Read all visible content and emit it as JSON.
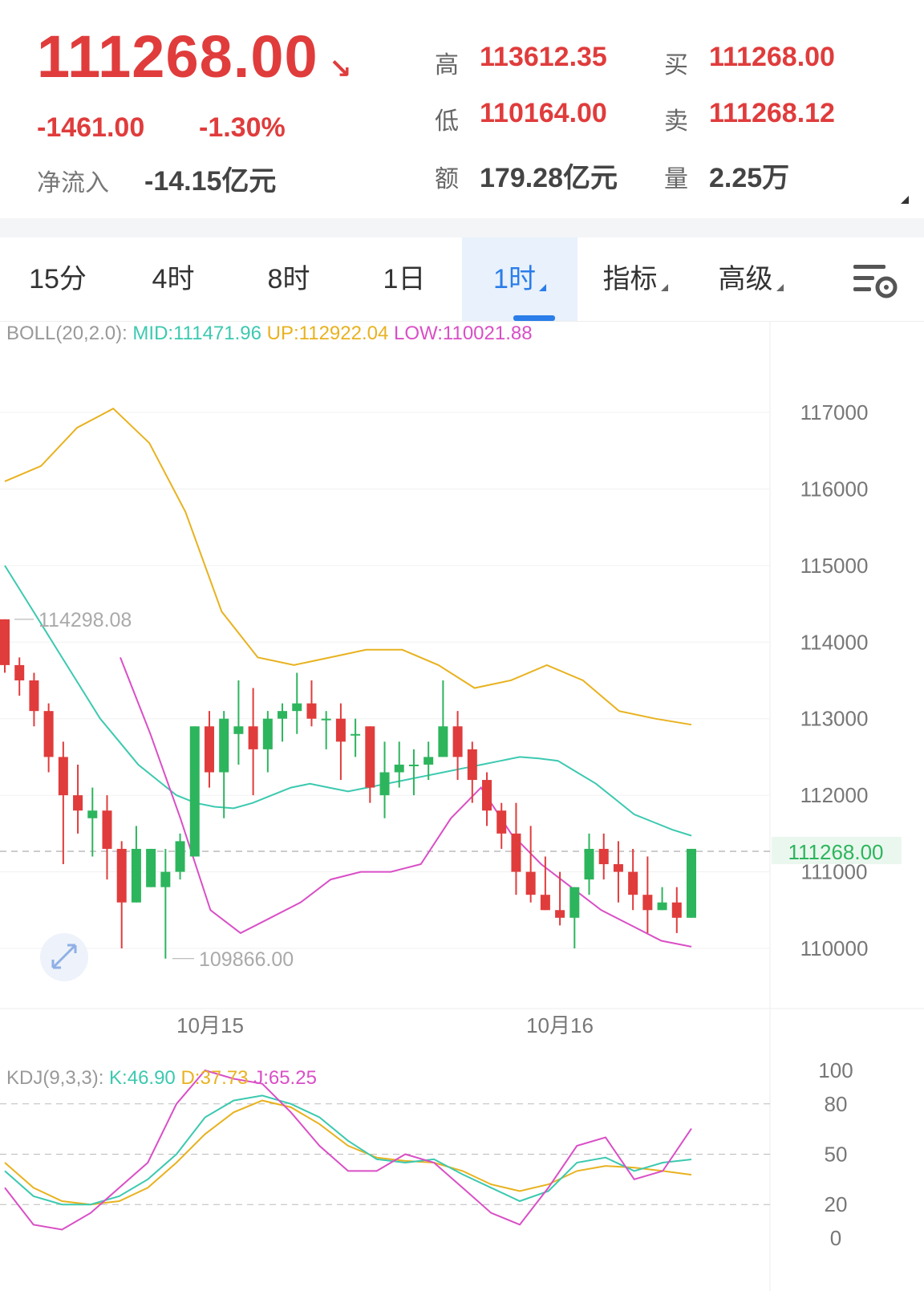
{
  "header": {
    "price": "111268.00",
    "change": "-1461.00",
    "change_pct": "-1.30%",
    "net_inflow_label": "净流入",
    "net_inflow_value": "-14.15亿元",
    "stats": [
      {
        "label": "高",
        "value": "113612.35"
      },
      {
        "label": "买",
        "value": "111268.00"
      },
      {
        "label": "低",
        "value": "110164.00"
      },
      {
        "label": "卖",
        "value": "111268.12"
      },
      {
        "label": "额",
        "value": "179.28亿元"
      },
      {
        "label": "量",
        "value": "2.25万"
      }
    ]
  },
  "tabs": [
    {
      "label": "15分"
    },
    {
      "label": "4时"
    },
    {
      "label": "8时"
    },
    {
      "label": "1日"
    },
    {
      "label": "1时",
      "active": true
    },
    {
      "label": "指标"
    },
    {
      "label": "高级"
    }
  ],
  "colors": {
    "up": "#2db55d",
    "down": "#e03c3c",
    "mid": "#3cc9b0",
    "upper": "#e8b21f",
    "lower": "#d94fc6",
    "accent": "#2b7de9"
  },
  "boll": {
    "name": "BOLL(20,2.0):",
    "mid": "MID:111471.96",
    "up": "UP:112922.04",
    "low": "LOW:110021.88"
  },
  "kdj": {
    "name": "KDJ(9,3,3):",
    "k": "K:46.90",
    "d": "D:37.73",
    "j": "J:65.25"
  },
  "chart_data": {
    "type": "candlestick",
    "y_ticks": [
      "117000",
      "116000",
      "115000",
      "114000",
      "113000",
      "112000",
      "111000",
      "110000"
    ],
    "x_labels": [
      "10月15",
      "10月16"
    ],
    "current_price_label": "111268.00",
    "max_marker": "114298.08",
    "min_marker": "109866.00",
    "kdj_ticks": [
      "100",
      "80",
      "50",
      "20",
      "0"
    ],
    "candles": [
      [
        114298,
        113700,
        114298,
        113600
      ],
      [
        113700,
        113500,
        113800,
        113300
      ],
      [
        113500,
        113100,
        113600,
        112900
      ],
      [
        113100,
        112500,
        113200,
        112300
      ],
      [
        112500,
        112000,
        112700,
        111100
      ],
      [
        112000,
        111800,
        112400,
        111500
      ],
      [
        111700,
        111800,
        112100,
        111200
      ],
      [
        111800,
        111300,
        112000,
        110900
      ],
      [
        111300,
        110600,
        111400,
        110000
      ],
      [
        110600,
        111300,
        111600,
        110600
      ],
      [
        110800,
        111300,
        111300,
        110800
      ],
      [
        110800,
        111000,
        111300,
        109866
      ],
      [
        111000,
        111400,
        111500,
        110900
      ],
      [
        111200,
        112900,
        112900,
        111300
      ],
      [
        112900,
        112300,
        113100,
        112100
      ],
      [
        112300,
        113000,
        113100,
        111700
      ],
      [
        112800,
        112900,
        113500,
        112400
      ],
      [
        112900,
        112600,
        113400,
        112000
      ],
      [
        112600,
        113000,
        113100,
        112300
      ],
      [
        113000,
        113100,
        113200,
        112700
      ],
      [
        113100,
        113200,
        113600,
        112800
      ],
      [
        113200,
        113000,
        113500,
        112900
      ],
      [
        113000,
        113000,
        113100,
        112600
      ],
      [
        113000,
        112700,
        113200,
        112200
      ],
      [
        112800,
        112800,
        113000,
        112500
      ],
      [
        112900,
        112100,
        112900,
        111900
      ],
      [
        112000,
        112300,
        112700,
        111700
      ],
      [
        112300,
        112400,
        112700,
        112100
      ],
      [
        112400,
        112400,
        112600,
        112000
      ],
      [
        112400,
        112500,
        112700,
        112200
      ],
      [
        112500,
        112900,
        113500,
        112500
      ],
      [
        112900,
        112500,
        113100,
        112200
      ],
      [
        112600,
        112200,
        112700,
        111900
      ],
      [
        112200,
        111800,
        112300,
        111600
      ],
      [
        111800,
        111500,
        111900,
        111300
      ],
      [
        111500,
        111000,
        111900,
        110700
      ],
      [
        111000,
        110700,
        111600,
        110600
      ],
      [
        110700,
        110500,
        111200,
        110500
      ],
      [
        110500,
        110400,
        111000,
        110300
      ],
      [
        110400,
        110800,
        110800,
        110000
      ],
      [
        110900,
        111300,
        111500,
        110700
      ],
      [
        111300,
        111100,
        111500,
        110900
      ],
      [
        111100,
        111000,
        111400,
        110600
      ],
      [
        111000,
        110700,
        111300,
        110500
      ],
      [
        110700,
        110500,
        111200,
        110200
      ],
      [
        110500,
        110600,
        110800,
        110500
      ],
      [
        110600,
        110400,
        110800,
        110200
      ],
      [
        110400,
        111300,
        111300,
        110400
      ]
    ],
    "boll_mid": [
      115000,
      114600,
      114200,
      113800,
      113400,
      113000,
      112700,
      112400,
      112200,
      112000,
      111900,
      111850,
      111830,
      111900,
      112000,
      112100,
      112150,
      112100,
      112050,
      112100,
      112150,
      112200,
      112250,
      112300,
      112350,
      112400,
      112450,
      112500,
      112480,
      112450,
      112300,
      112150,
      111950,
      111750,
      111650,
      111550,
      111471.96
    ],
    "boll_up": [
      116100,
      116300,
      116800,
      117050,
      116600,
      115700,
      114400,
      113800,
      113700,
      113800,
      113900,
      113900,
      113700,
      113400,
      113500,
      113700,
      113500,
      113100,
      113000,
      112922.04
    ],
    "boll_low": [
      113800,
      112800,
      111700,
      110500,
      110200,
      110400,
      110600,
      110900,
      111000,
      111000,
      111100,
      111700,
      112100,
      111500,
      111100,
      110800,
      110500,
      110300,
      110100,
      110021.88
    ],
    "kdj_k": [
      40,
      25,
      20,
      20,
      25,
      35,
      50,
      72,
      82,
      85,
      80,
      72,
      58,
      47,
      45,
      47,
      38,
      30,
      22,
      28,
      45,
      48,
      40,
      45,
      46.9
    ],
    "kdj_d": [
      45,
      30,
      22,
      20,
      22,
      30,
      45,
      62,
      75,
      82,
      78,
      68,
      55,
      48,
      46,
      45,
      40,
      32,
      28,
      32,
      40,
      43,
      42,
      40,
      37.73
    ],
    "kdj_j": [
      30,
      8,
      5,
      15,
      30,
      45,
      80,
      100,
      95,
      92,
      75,
      55,
      40,
      40,
      50,
      45,
      30,
      15,
      8,
      30,
      55,
      60,
      35,
      40,
      65.25
    ]
  }
}
